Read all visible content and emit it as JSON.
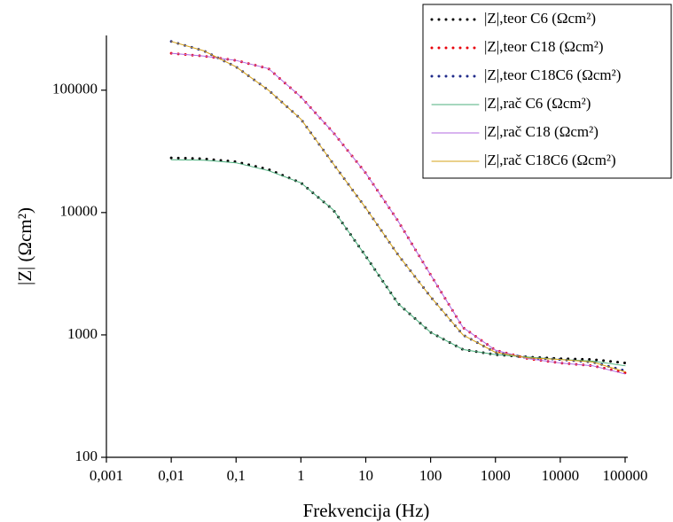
{
  "chart_data": {
    "type": "line",
    "x_label": "Frekvencija (Hz)",
    "y_label": "|Z| (Ωcm²)",
    "xlog": true,
    "ylog": true,
    "xlim": [
      0.001,
      100000
    ],
    "ylim": [
      100,
      280000
    ],
    "xticks": [
      {
        "value": 0.001,
        "label": "0,001"
      },
      {
        "value": 0.01,
        "label": "0,01"
      },
      {
        "value": 0.1,
        "label": "0,1"
      },
      1,
      10,
      100,
      1000,
      10000,
      100000
    ],
    "yticks": [
      100,
      1000,
      10000,
      100000
    ],
    "legend": "top-right",
    "x": [
      0.01,
      0.0316,
      0.1,
      0.316,
      1,
      3.16,
      10,
      31.6,
      100,
      316,
      1000,
      3162,
      10000,
      31623,
      100000
    ],
    "series": [
      {
        "name": "|Z|,teor C6 (Ωcm²)",
        "color": "#000000",
        "line_style": "dotted",
        "values": [
          28000,
          27500,
          26000,
          22500,
          17500,
          10500,
          4400,
          1800,
          1050,
          760,
          690,
          660,
          640,
          630,
          590
        ]
      },
      {
        "name": "|Z|,teor C18 (Ωcm²)",
        "color": "#e8000b",
        "line_style": "dotted",
        "values": [
          200000,
          190000,
          175000,
          150000,
          88000,
          45000,
          21000,
          8500,
          3100,
          1150,
          750,
          640,
          590,
          560,
          490
        ]
      },
      {
        "name": "|Z|,teor C18C6 (Ωcm²)",
        "color": "#1f2a8a",
        "line_style": "dotted",
        "values": [
          250000,
          210000,
          155000,
          100000,
          58000,
          25000,
          10900,
          4500,
          2050,
          1000,
          720,
          650,
          630,
          600,
          510
        ]
      },
      {
        "name": "|Z|,rač C6 (Ωcm²)",
        "color": "#4caf7d",
        "line_style": "solid",
        "values": [
          27000,
          26800,
          25500,
          22000,
          17500,
          10500,
          4400,
          1800,
          1050,
          760,
          690,
          660,
          630,
          610,
          560
        ]
      },
      {
        "name": "|Z|,rač C18 (Ωcm²)",
        "color": "#b36ae2",
        "line_style": "solid",
        "values": [
          200000,
          190000,
          175000,
          150000,
          88000,
          45000,
          21000,
          8500,
          3100,
          1150,
          750,
          640,
          590,
          560,
          480
        ]
      },
      {
        "name": "|Z|,rač C18C6 (Ωcm²)",
        "color": "#d4a017",
        "line_style": "solid",
        "values": [
          250000,
          210000,
          155000,
          100000,
          58000,
          25000,
          10900,
          4500,
          2050,
          1000,
          720,
          650,
          630,
          600,
          500
        ]
      }
    ]
  }
}
